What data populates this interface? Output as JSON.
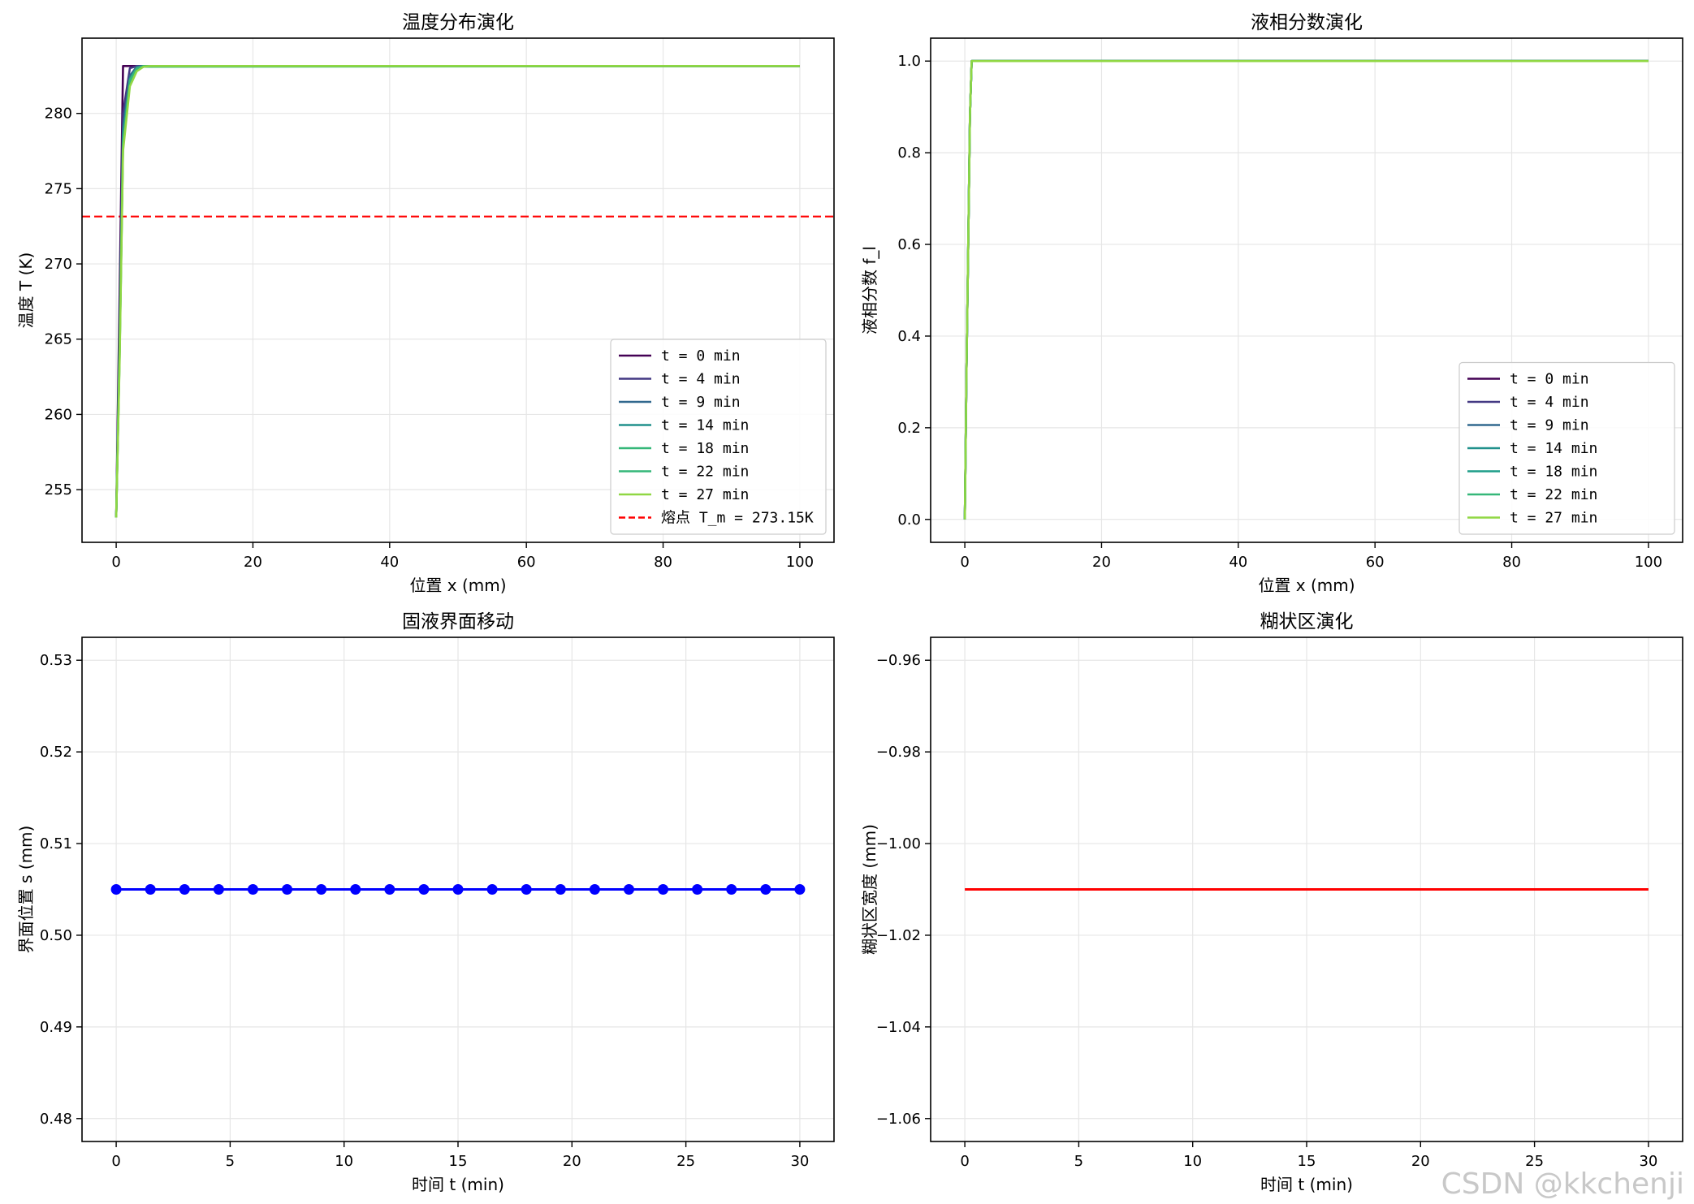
{
  "watermark": "CSDN @kkchenji",
  "chart_data": [
    {
      "type": "line",
      "title": "温度分布演化",
      "xlabel": "位置 x (mm)",
      "ylabel": "温度 T (K)",
      "xlim": [
        -5,
        105
      ],
      "ylim": [
        251.5,
        285
      ],
      "xticks": [
        0,
        20,
        40,
        60,
        80,
        100
      ],
      "yticks": [
        255,
        260,
        265,
        270,
        275,
        280
      ],
      "grid": true,
      "legend_position": "lower-right",
      "series": [
        {
          "name": "t = 0 min",
          "color": "#440154",
          "x": [
            0,
            0.5,
            1.0,
            2.0,
            100
          ],
          "y": [
            253.15,
            268,
            283.15,
            283.15,
            283.15
          ]
        },
        {
          "name": "t = 4 min",
          "color": "#443983",
          "x": [
            0,
            0.5,
            1.0,
            2.0,
            3.0,
            100
          ],
          "y": [
            253.15,
            266,
            280,
            283.0,
            283.15,
            283.15
          ]
        },
        {
          "name": "t = 9 min",
          "color": "#31688e",
          "x": [
            0,
            0.5,
            1.0,
            2.0,
            3.0,
            4.0,
            100
          ],
          "y": [
            253.15,
            265,
            279,
            282.5,
            283.1,
            283.15,
            283.15
          ]
        },
        {
          "name": "t = 14 min",
          "color": "#21918c",
          "x": [
            0,
            0.5,
            1.0,
            2.0,
            3.0,
            4.0,
            100
          ],
          "y": [
            253.15,
            264.5,
            278.5,
            282.3,
            283.0,
            283.15,
            283.15
          ]
        },
        {
          "name": "t = 18 min",
          "color": "#35b779",
          "x": [
            0,
            0.5,
            1.0,
            2.0,
            3.0,
            4.0,
            100
          ],
          "y": [
            253.15,
            264,
            278,
            282.2,
            283.0,
            283.15,
            283.15
          ]
        },
        {
          "name": "t = 22 min",
          "color": "#35b779",
          "x": [
            0,
            0.5,
            1.0,
            2.0,
            3.0,
            4.0,
            100
          ],
          "y": [
            253.15,
            263.8,
            277.8,
            282.0,
            282.9,
            283.1,
            283.15
          ]
        },
        {
          "name": "t = 27 min",
          "color": "#90d743",
          "x": [
            0,
            0.5,
            1.0,
            2.0,
            3.0,
            4.0,
            5.0,
            100
          ],
          "y": [
            253.15,
            263.5,
            277.5,
            281.8,
            282.8,
            283.1,
            283.15,
            283.15
          ]
        }
      ],
      "reference_line": {
        "name": "熔点 T_m = 273.15K",
        "y": 273.15,
        "color": "#ff0000",
        "style": "dashed"
      }
    },
    {
      "type": "line",
      "title": "液相分数演化",
      "xlabel": "位置 x (mm)",
      "ylabel": "液相分数 f_l",
      "xlim": [
        -5,
        105
      ],
      "ylim": [
        -0.05,
        1.05
      ],
      "xticks": [
        0,
        20,
        40,
        60,
        80,
        100
      ],
      "yticks": [
        0.0,
        0.2,
        0.4,
        0.6,
        0.8,
        1.0
      ],
      "grid": true,
      "legend_position": "lower-right",
      "series": [
        {
          "name": "t = 0 min",
          "color": "#440154",
          "x": [
            0,
            0.25,
            0.5,
            0.75,
            1.0,
            100
          ],
          "y": [
            0,
            0.33,
            0.6,
            0.88,
            1.0,
            1.0
          ]
        },
        {
          "name": "t = 4 min",
          "color": "#443983",
          "x": [
            0,
            0.25,
            0.5,
            0.75,
            1.0,
            100
          ],
          "y": [
            0,
            0.33,
            0.6,
            0.88,
            1.0,
            1.0
          ]
        },
        {
          "name": "t = 9 min",
          "color": "#31688e",
          "x": [
            0,
            0.25,
            0.5,
            0.75,
            1.0,
            100
          ],
          "y": [
            0,
            0.33,
            0.6,
            0.88,
            1.0,
            1.0
          ]
        },
        {
          "name": "t = 14 min",
          "color": "#21918c",
          "x": [
            0,
            0.25,
            0.5,
            0.75,
            1.0,
            100
          ],
          "y": [
            0,
            0.33,
            0.6,
            0.88,
            1.0,
            1.0
          ]
        },
        {
          "name": "t = 18 min",
          "color": "#1f9e89",
          "x": [
            0,
            0.25,
            0.5,
            0.75,
            1.0,
            100
          ],
          "y": [
            0,
            0.33,
            0.6,
            0.88,
            1.0,
            1.0
          ]
        },
        {
          "name": "t = 22 min",
          "color": "#35b779",
          "x": [
            0,
            0.25,
            0.5,
            0.75,
            1.0,
            100
          ],
          "y": [
            0,
            0.33,
            0.6,
            0.88,
            1.0,
            1.0
          ]
        },
        {
          "name": "t = 27 min",
          "color": "#90d743",
          "x": [
            0,
            0.25,
            0.5,
            0.75,
            1.0,
            100
          ],
          "y": [
            0,
            0.33,
            0.6,
            0.88,
            1.0,
            1.0
          ]
        }
      ]
    },
    {
      "type": "line",
      "title": "固液界面移动",
      "xlabel": "时间 t (min)",
      "ylabel": "界面位置 s (mm)",
      "xlim": [
        -1.5,
        31.5
      ],
      "ylim": [
        0.4775,
        0.5325
      ],
      "xticks": [
        0,
        5,
        10,
        15,
        20,
        25,
        30
      ],
      "yticks": [
        0.48,
        0.49,
        0.5,
        0.51,
        0.52,
        0.53
      ],
      "grid": true,
      "series": [
        {
          "name": "",
          "color": "#0000ff",
          "markers": true,
          "x": [
            0,
            1.5,
            3,
            4.5,
            6,
            7.5,
            9,
            10.5,
            12,
            13.5,
            15,
            16.5,
            18,
            19.5,
            21,
            22.5,
            24,
            25.5,
            27,
            28.5,
            30
          ],
          "y": [
            0.505,
            0.505,
            0.505,
            0.505,
            0.505,
            0.505,
            0.505,
            0.505,
            0.505,
            0.505,
            0.505,
            0.505,
            0.505,
            0.505,
            0.505,
            0.505,
            0.505,
            0.505,
            0.505,
            0.505,
            0.505
          ]
        }
      ]
    },
    {
      "type": "line",
      "title": "糊状区演化",
      "xlabel": "时间 t (min)",
      "ylabel": "糊状区宽度 (mm)",
      "xlim": [
        -1.5,
        31.5
      ],
      "ylim": [
        -1.065,
        -0.955
      ],
      "xticks": [
        0,
        5,
        10,
        15,
        20,
        25,
        30
      ],
      "yticks": [
        -0.96,
        -0.98,
        -1.0,
        -1.02,
        -1.04,
        -1.06
      ],
      "grid": true,
      "series": [
        {
          "name": "",
          "color": "#ff0000",
          "x": [
            0,
            30
          ],
          "y": [
            -1.01,
            -1.01
          ]
        }
      ]
    }
  ]
}
